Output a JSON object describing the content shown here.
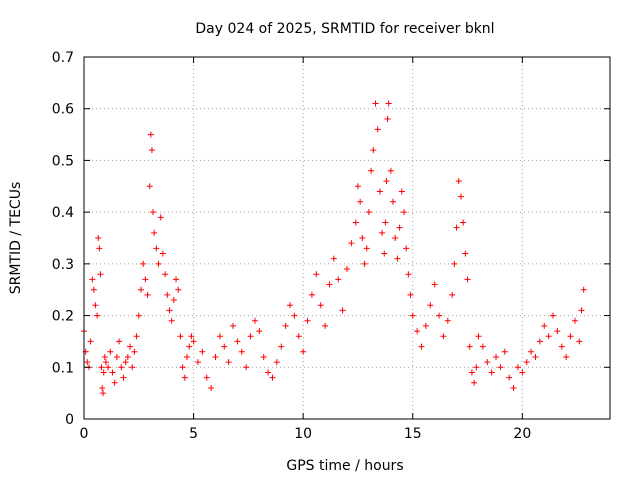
{
  "chart_data": {
    "type": "scatter",
    "title": "Day 024 of 2025, SRMTID for receiver bknl",
    "xlabel": "GPS time / hours",
    "ylabel": "SRMTID / TECUs",
    "xlim": [
      0,
      24
    ],
    "ylim": [
      0,
      0.7
    ],
    "x_ticks": [
      0,
      5,
      10,
      15,
      20
    ],
    "x_tick_labels": [
      "0",
      "5",
      "10",
      "15",
      "20"
    ],
    "y_ticks": [
      0,
      0.1,
      0.2,
      0.3,
      0.4,
      0.5,
      0.6,
      0.7
    ],
    "y_tick_labels": [
      "0",
      "0.1",
      "0.2",
      "0.3",
      "0.4",
      "0.5",
      "0.6",
      "0.7"
    ],
    "grid": true,
    "marker": "+",
    "series": [
      {
        "name": "SRMTID",
        "color": "#ff0000",
        "x": [
          0.0,
          0.08,
          0.15,
          0.23,
          0.3,
          0.38,
          0.45,
          0.52,
          0.6,
          0.65,
          0.7,
          0.75,
          0.8,
          0.83,
          0.87,
          0.9,
          0.95,
          1.0,
          1.1,
          1.2,
          1.3,
          1.4,
          1.5,
          1.6,
          1.7,
          1.8,
          1.9,
          2.0,
          2.1,
          2.2,
          2.3,
          2.4,
          2.5,
          2.6,
          2.7,
          2.8,
          2.9,
          3.0,
          3.05,
          3.1,
          3.15,
          3.2,
          3.3,
          3.4,
          3.5,
          3.6,
          3.7,
          3.8,
          3.9,
          4.0,
          4.1,
          4.2,
          4.3,
          4.4,
          4.5,
          4.6,
          4.7,
          4.8,
          4.9,
          5.0,
          5.2,
          5.4,
          5.6,
          5.8,
          6.0,
          6.2,
          6.4,
          6.6,
          6.8,
          7.0,
          7.2,
          7.4,
          7.6,
          7.8,
          8.0,
          8.2,
          8.4,
          8.6,
          8.8,
          9.0,
          9.2,
          9.4,
          9.6,
          9.8,
          10.0,
          10.2,
          10.4,
          10.6,
          10.8,
          11.0,
          11.2,
          11.4,
          11.6,
          11.8,
          12.0,
          12.2,
          12.4,
          12.5,
          12.6,
          12.7,
          12.8,
          12.9,
          13.0,
          13.1,
          13.2,
          13.3,
          13.4,
          13.5,
          13.6,
          13.7,
          13.75,
          13.8,
          13.85,
          13.9,
          14.0,
          14.1,
          14.2,
          14.3,
          14.4,
          14.5,
          14.6,
          14.7,
          14.8,
          14.9,
          15.0,
          15.2,
          15.4,
          15.6,
          15.8,
          16.0,
          16.2,
          16.4,
          16.6,
          16.8,
          16.9,
          17.0,
          17.1,
          17.2,
          17.3,
          17.4,
          17.5,
          17.6,
          17.7,
          17.8,
          17.9,
          18.0,
          18.2,
          18.4,
          18.6,
          18.8,
          19.0,
          19.2,
          19.4,
          19.6,
          19.8,
          20.0,
          20.2,
          20.4,
          20.6,
          20.8,
          21.0,
          21.2,
          21.4,
          21.6,
          21.8,
          22.0,
          22.2,
          22.4,
          22.6,
          22.7,
          22.8
        ],
        "y": [
          0.17,
          0.13,
          0.11,
          0.1,
          0.15,
          0.27,
          0.25,
          0.22,
          0.2,
          0.35,
          0.33,
          0.28,
          0.1,
          0.06,
          0.05,
          0.09,
          0.12,
          0.11,
          0.1,
          0.13,
          0.09,
          0.07,
          0.12,
          0.15,
          0.1,
          0.08,
          0.11,
          0.12,
          0.14,
          0.1,
          0.13,
          0.16,
          0.2,
          0.25,
          0.3,
          0.27,
          0.24,
          0.45,
          0.55,
          0.52,
          0.4,
          0.36,
          0.33,
          0.3,
          0.39,
          0.32,
          0.28,
          0.24,
          0.21,
          0.19,
          0.23,
          0.27,
          0.25,
          0.16,
          0.1,
          0.08,
          0.12,
          0.14,
          0.16,
          0.15,
          0.11,
          0.13,
          0.08,
          0.06,
          0.12,
          0.16,
          0.14,
          0.11,
          0.18,
          0.15,
          0.13,
          0.1,
          0.16,
          0.19,
          0.17,
          0.12,
          0.09,
          0.08,
          0.11,
          0.14,
          0.18,
          0.22,
          0.2,
          0.16,
          0.13,
          0.19,
          0.24,
          0.28,
          0.22,
          0.18,
          0.26,
          0.31,
          0.27,
          0.21,
          0.29,
          0.34,
          0.38,
          0.45,
          0.42,
          0.35,
          0.3,
          0.33,
          0.4,
          0.48,
          0.52,
          0.61,
          0.56,
          0.44,
          0.36,
          0.32,
          0.38,
          0.46,
          0.58,
          0.61,
          0.48,
          0.42,
          0.35,
          0.31,
          0.37,
          0.44,
          0.4,
          0.33,
          0.28,
          0.24,
          0.2,
          0.17,
          0.14,
          0.18,
          0.22,
          0.26,
          0.2,
          0.16,
          0.19,
          0.24,
          0.3,
          0.37,
          0.46,
          0.43,
          0.38,
          0.32,
          0.27,
          0.14,
          0.09,
          0.07,
          0.1,
          0.16,
          0.14,
          0.11,
          0.09,
          0.12,
          0.1,
          0.13,
          0.08,
          0.06,
          0.1,
          0.09,
          0.11,
          0.13,
          0.12,
          0.15,
          0.18,
          0.16,
          0.2,
          0.17,
          0.14,
          0.12,
          0.16,
          0.19,
          0.15,
          0.21,
          0.25
        ]
      }
    ]
  }
}
